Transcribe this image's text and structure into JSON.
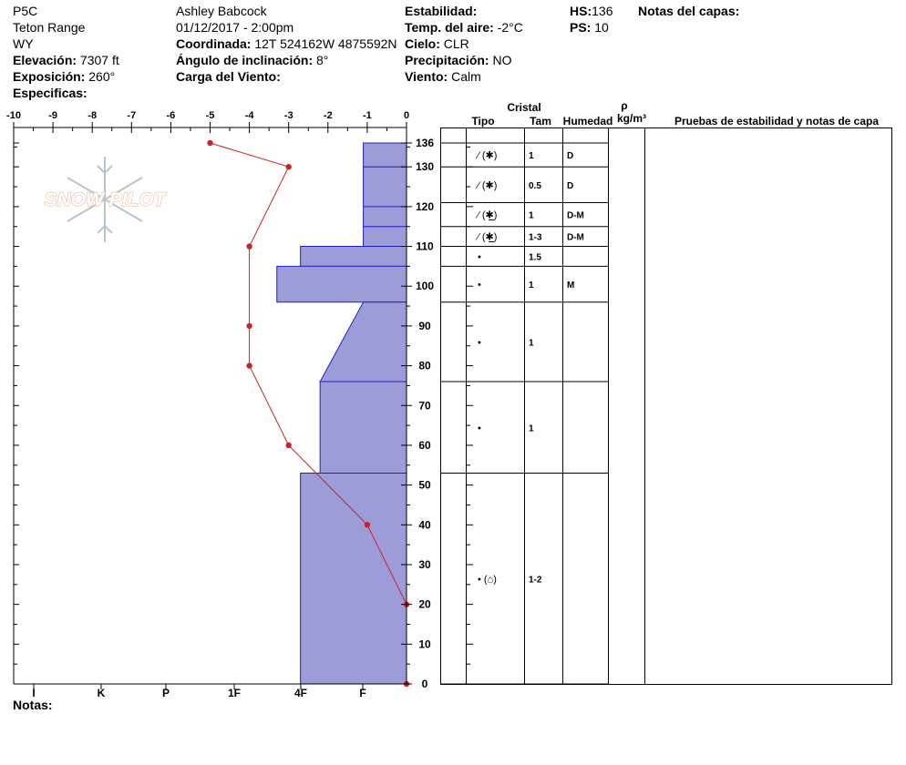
{
  "header": {
    "site": "P5C",
    "range": "Teton Range",
    "state": "WY",
    "elevation_label": "Elevación:",
    "elevation": "7307 ft",
    "aspect_label": "Exposición:",
    "aspect": "260°",
    "specifics_label": "Especificas:",
    "observer": "Ashley Babcock",
    "datetime": "01/12/2017 - 2:00pm",
    "coord_label": "Coordinada:",
    "coord": "12T 524162W 4875592N",
    "slope_label": "Ángulo de inclinación:",
    "slope": "8°",
    "wind_load_label": "Carga del Viento:",
    "stability_label": "Estabilidad:",
    "air_temp_label": "Temp. del aire:",
    "air_temp": "-2°C",
    "sky_label": "Cielo:",
    "sky": "CLR",
    "precip_label": "Precipitación:",
    "precip": "NO",
    "wind_label": "Viento:",
    "wind": "Calm",
    "hs_label": "HS:",
    "hs": "136",
    "ps_label": "PS:",
    "ps": "10",
    "layer_notes_label": "Notas del capas:",
    "notes_label": "Notas:"
  },
  "logo": {
    "text": "SNOW PILOT"
  },
  "colors": {
    "hardness_fill": "#9c9cd9",
    "hardness_stroke": "#2020c0",
    "temp_line": "#cc2222"
  },
  "columns": {
    "crystal": "Cristal",
    "type": "Tipo",
    "size": "Tam",
    "moisture": "Humedad",
    "density_symbol": "ρ",
    "density_unit": "kg/m³",
    "tests": "Pruebas de estabilidad y notas de capa"
  },
  "chart_data": {
    "type": "area",
    "temperature_axis": {
      "label": "",
      "range": [
        -10,
        0
      ],
      "ticks": [
        -10,
        -9,
        -8,
        -7,
        -6,
        -5,
        -4,
        -3,
        -2,
        -1,
        0
      ]
    },
    "height_axis": {
      "unit": "cm",
      "range": [
        0,
        136
      ],
      "ticks": [
        0,
        10,
        20,
        30,
        40,
        50,
        60,
        70,
        80,
        90,
        100,
        110,
        120,
        130,
        136
      ]
    },
    "hardness_axis": {
      "labels": [
        "I",
        "K",
        "P",
        "1F",
        "4F",
        "F"
      ]
    },
    "temperature_profile": [
      {
        "height": 136,
        "temp": -5
      },
      {
        "height": 130,
        "temp": -3
      },
      {
        "height": 110,
        "temp": -4
      },
      {
        "height": 90,
        "temp": -4
      },
      {
        "height": 80,
        "temp": -4
      },
      {
        "height": 60,
        "temp": -3
      },
      {
        "height": 40,
        "temp": -1
      },
      {
        "height": 20,
        "temp": 0
      },
      {
        "height": 0,
        "temp": 0
      }
    ],
    "hardness_profile": [
      {
        "top": 136,
        "bottom": 110,
        "top_width": 1.1,
        "bottom_width": 1.1
      },
      {
        "top": 110,
        "bottom": 105,
        "top_width": 2.7,
        "bottom_width": 2.7
      },
      {
        "top": 105,
        "bottom": 96,
        "top_width": 3.3,
        "bottom_width": 3.3
      },
      {
        "top": 96,
        "bottom": 76,
        "top_width": 1.1,
        "bottom_width": 2.2
      },
      {
        "top": 76,
        "bottom": 53,
        "top_width": 2.2,
        "bottom_width": 2.2
      },
      {
        "top": 53,
        "bottom": 0,
        "top_width": 2.7,
        "bottom_width": 2.7
      }
    ],
    "hardness_dividers": [
      130,
      120,
      115
    ],
    "layers": [
      {
        "top": 136,
        "bottom": 130,
        "type": "⁄ (✱)",
        "size": "1",
        "moisture": "D"
      },
      {
        "top": 130,
        "bottom": 121,
        "type": "⁄ (✱)",
        "size": "0.5",
        "moisture": "D"
      },
      {
        "top": 121,
        "bottom": 115,
        "type": "⁄ (✱̲)",
        "size": "1",
        "moisture": "D-M"
      },
      {
        "top": 115,
        "bottom": 110,
        "type": "⁄ (✱̲)",
        "size": "1-3",
        "moisture": "D-M"
      },
      {
        "top": 110,
        "bottom": 105,
        "type": "•",
        "size": "1.5",
        "moisture": ""
      },
      {
        "top": 105,
        "bottom": 96,
        "type": "•",
        "size": "1",
        "moisture": "M"
      },
      {
        "top": 96,
        "bottom": 76,
        "type": "•",
        "size": "1",
        "moisture": ""
      },
      {
        "top": 76,
        "bottom": 53,
        "type": "•",
        "size": "1",
        "moisture": ""
      },
      {
        "top": 53,
        "bottom": 0,
        "type": "• (⌂)",
        "size": "1-2",
        "moisture": ""
      }
    ]
  }
}
